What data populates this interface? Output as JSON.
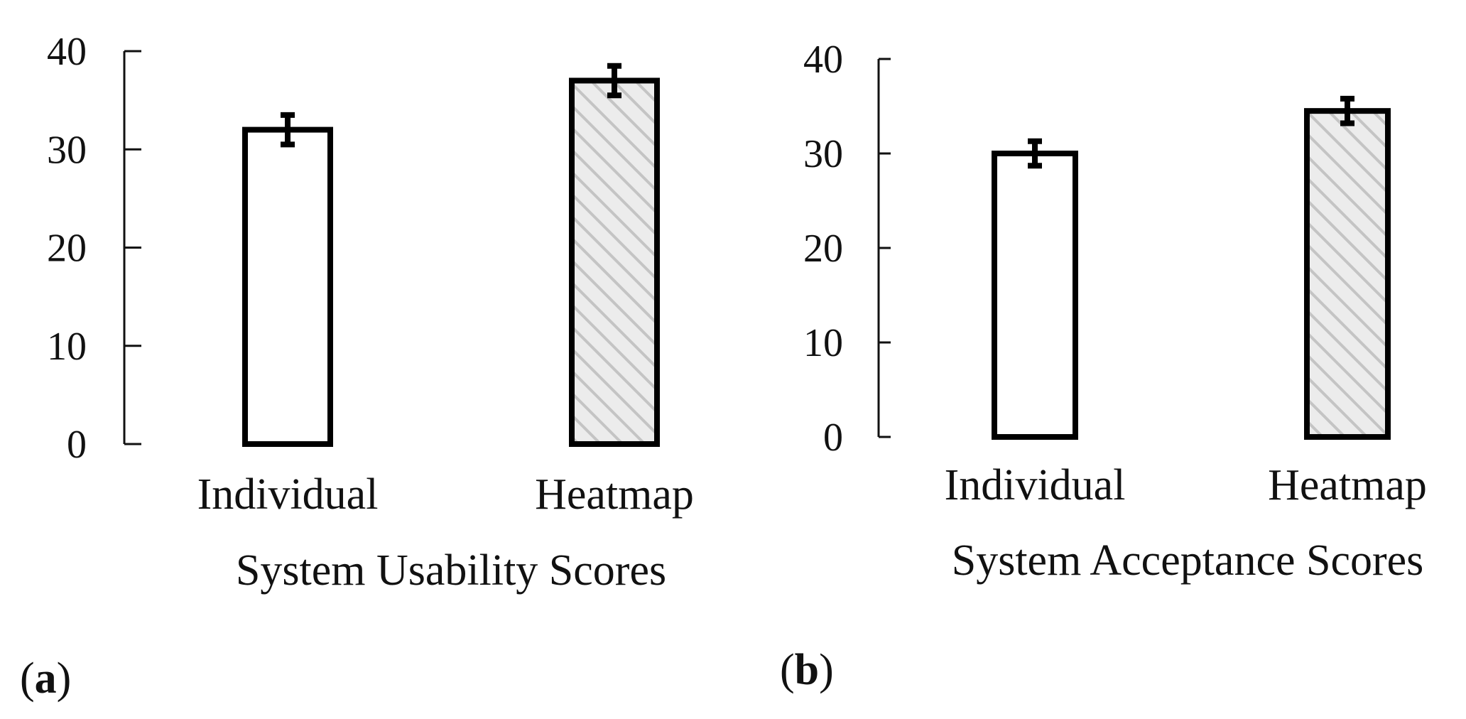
{
  "chart_data": [
    {
      "type": "bar",
      "panel_label": "a",
      "title": "System Usability Scores",
      "xlabel": "System Usability Scores",
      "ylabel": "",
      "ylim": [
        0,
        40
      ],
      "yticks": [
        0,
        10,
        20,
        30,
        40
      ],
      "categories": [
        "Individual",
        "Heatmap"
      ],
      "values": [
        32,
        37
      ],
      "errors": [
        1.5,
        1.5
      ],
      "fills": [
        "none",
        "hatched-gray"
      ]
    },
    {
      "type": "bar",
      "panel_label": "b",
      "title": "System Acceptance Scores",
      "xlabel": "System Acceptance Scores",
      "ylabel": "",
      "ylim": [
        0,
        40
      ],
      "yticks": [
        0,
        10,
        20,
        30,
        40
      ],
      "categories": [
        "Individual",
        "Heatmap"
      ],
      "values": [
        30,
        34.5
      ],
      "errors": [
        1.3,
        1.3
      ],
      "fills": [
        "none",
        "hatched-gray"
      ]
    }
  ],
  "colors": {
    "axis": "#111111",
    "bar_stroke": "#000000",
    "bar_plain_fill": "#ffffff",
    "hatch_bg": "#ececec",
    "hatch_line": "#c4c4c4"
  }
}
